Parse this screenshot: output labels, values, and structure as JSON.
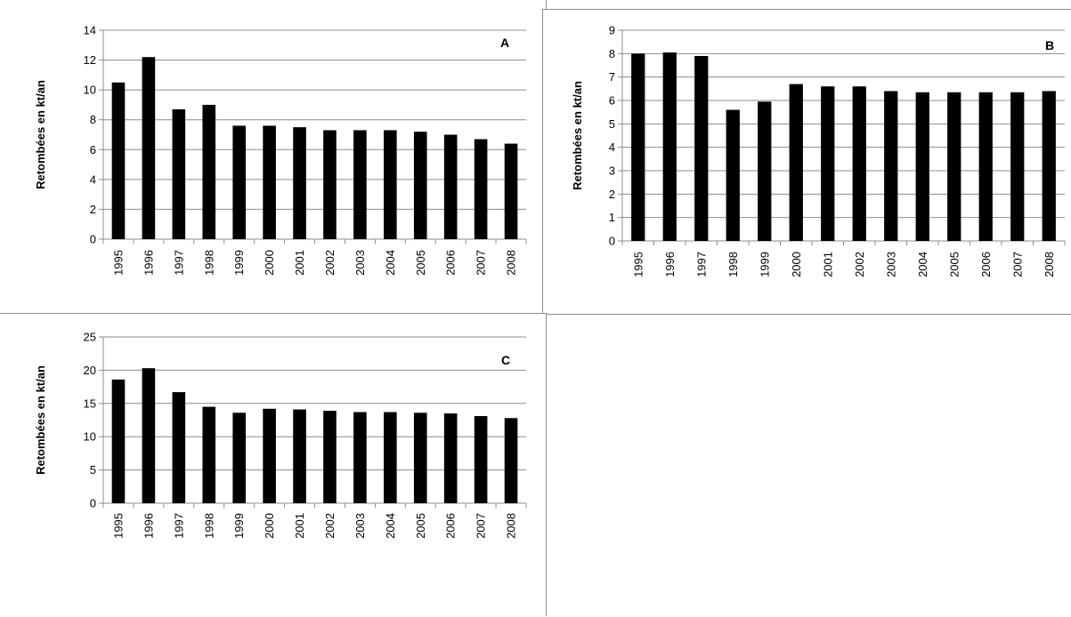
{
  "chart_data": [
    {
      "type": "bar",
      "panel_label": "A",
      "ylabel": "Retombées en kt/an",
      "ylim": [
        0,
        14
      ],
      "ytick_step": 2,
      "ytick_labels": [
        "0",
        "2",
        "4",
        "6",
        "8",
        "10",
        "12",
        "14"
      ],
      "categories": [
        "1995",
        "1996",
        "1997",
        "1998",
        "1999",
        "2000",
        "2001",
        "2002",
        "2003",
        "2004",
        "2005",
        "2006",
        "2007",
        "2008"
      ],
      "values": [
        10.5,
        12.2,
        8.7,
        9.0,
        7.6,
        7.6,
        7.5,
        7.3,
        7.3,
        7.3,
        7.2,
        7.0,
        6.7,
        6.4
      ],
      "grid": true,
      "bar_color": "#000000"
    },
    {
      "type": "bar",
      "panel_label": "B",
      "ylabel": "Retombées en kt/an",
      "ylim": [
        0,
        9
      ],
      "ytick_step": 1,
      "ytick_labels": [
        "0",
        "1",
        "2",
        "3",
        "4",
        "5",
        "6",
        "7",
        "8",
        "9"
      ],
      "categories": [
        "1995",
        "1996",
        "1997",
        "1998",
        "1999",
        "2000",
        "2001",
        "2002",
        "2003",
        "2004",
        "2005",
        "2006",
        "2007",
        "2008"
      ],
      "values": [
        8.0,
        8.05,
        7.9,
        5.6,
        5.95,
        6.7,
        6.6,
        6.6,
        6.4,
        6.35,
        6.35,
        6.35,
        6.35,
        6.4
      ],
      "grid": true,
      "bar_color": "#000000"
    },
    {
      "type": "bar",
      "panel_label": "C",
      "ylabel": "Retombées en kt/an",
      "ylim": [
        0,
        25
      ],
      "ytick_step": 5,
      "ytick_labels": [
        "0",
        "5",
        "10",
        "15",
        "20",
        "25"
      ],
      "categories": [
        "1995",
        "1996",
        "1997",
        "1998",
        "1999",
        "2000",
        "2001",
        "2002",
        "2003",
        "2004",
        "2005",
        "2006",
        "2007",
        "2008"
      ],
      "values": [
        18.6,
        20.3,
        16.7,
        14.5,
        13.6,
        14.2,
        14.1,
        13.9,
        13.7,
        13.7,
        13.6,
        13.5,
        13.1,
        12.8
      ],
      "grid": true,
      "bar_color": "#000000"
    }
  ]
}
